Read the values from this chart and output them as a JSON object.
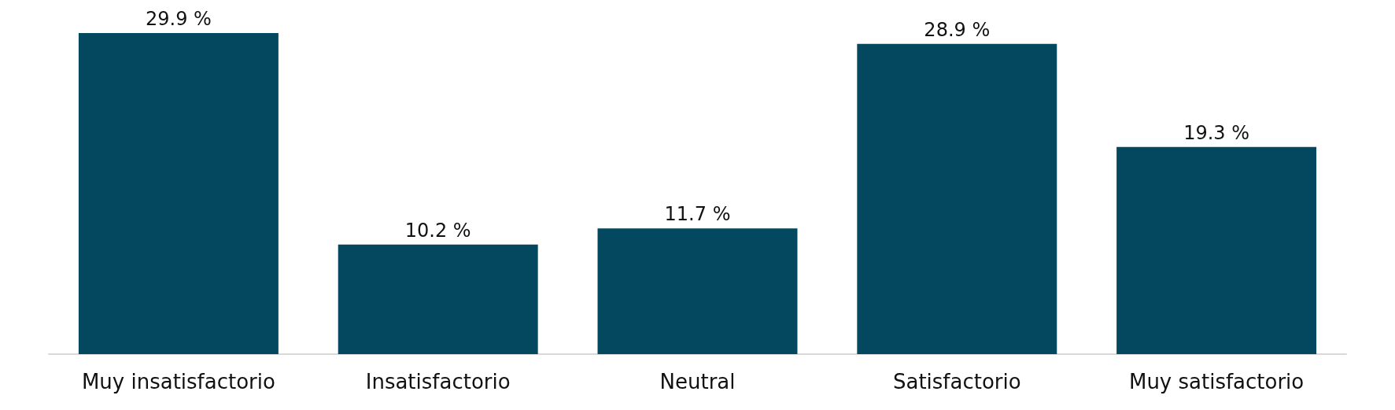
{
  "chart_data": {
    "type": "bar",
    "categories": [
      "Muy insatisfactorio",
      "Insatisfactorio",
      "Neutral",
      "Satisfactorio",
      "Muy satisfactorio"
    ],
    "values": [
      29.9,
      10.2,
      11.7,
      28.9,
      19.3
    ],
    "value_labels": [
      "29.9 %",
      "10.2 %",
      "11.7 %",
      "28.9 %",
      "19.3 %"
    ],
    "color": "#03485f"
  }
}
